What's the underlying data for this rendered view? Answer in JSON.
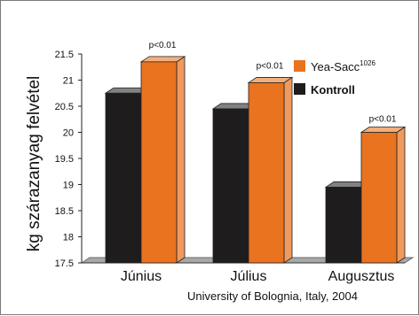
{
  "chart_data": {
    "type": "bar",
    "ylabel": "kg szárazanyag felvétel",
    "categories": [
      "Június",
      "Július",
      "Augusztus"
    ],
    "yticks": [
      "17.5",
      "18",
      "18.5",
      "19",
      "19.5",
      "20",
      "20.5",
      "21",
      "21.5"
    ],
    "ylim": [
      17.5,
      21.5
    ],
    "series": [
      {
        "name": "Kontroll",
        "values": [
          20.75,
          20.45,
          18.95
        ],
        "color": "#1e1c1d"
      },
      {
        "name": "Yea-Sacc",
        "name_sup": "1026",
        "values": [
          21.35,
          20.95,
          20.0
        ],
        "color": "#e9731f"
      }
    ],
    "annotations": [
      "p<0.01",
      "p<0.01",
      "p<0.01"
    ],
    "legend": "top-right",
    "grid": false
  },
  "source": "University of Bolognia, Italy, 2004"
}
